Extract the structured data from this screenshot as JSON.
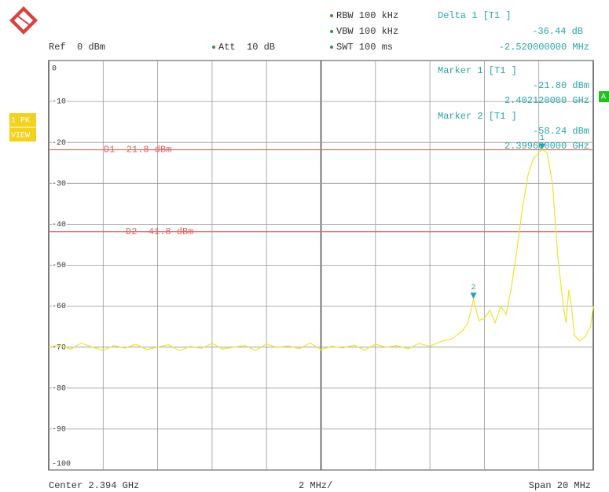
{
  "chart_data": {
    "type": "line",
    "ref_level": "Ref  0 dBm",
    "attenuation": "Att  10 dB",
    "settings": [
      "RBW 100 kHz",
      "VBW 100 kHz",
      "SWT 100 ms"
    ],
    "delta_readout": {
      "title": "Delta 1 [T1 ]",
      "level": "-36.44 dB",
      "frequency": "-2.520000000 MHz"
    },
    "marker_readouts": [
      {
        "title": "Marker 1 [T1 ]",
        "level": "-21.80 dBm",
        "frequency": "2.402120000 GHz"
      },
      {
        "title": "Marker 2 [T1 ]",
        "level": "-58.24 dBm",
        "frequency": "2.399600000 GHz"
      }
    ],
    "trace_labels": [
      "1 PK",
      "VIEW"
    ],
    "status": "A",
    "center_label": "Center 2.394 GHz",
    "division_label": "2 MHz/",
    "span_label": "Span 20 MHz",
    "xlim": [
      2.384,
      2.404
    ],
    "xticks": [
      {
        "value": 2.386,
        "label": null
      },
      {
        "value": 2.388,
        "label": null
      },
      {
        "value": 2.39,
        "label": null
      },
      {
        "value": 2.392,
        "label": null
      },
      {
        "value": 2.394,
        "label": null
      },
      {
        "value": 2.396,
        "label": null
      },
      {
        "value": 2.398,
        "label": null
      },
      {
        "value": 2.4,
        "label": null
      },
      {
        "value": 2.402,
        "label": null
      }
    ],
    "ylim": [
      -100,
      0
    ],
    "yticks": [
      0,
      -10,
      -20,
      -30,
      -40,
      -50,
      -60,
      -70,
      -80,
      -90,
      -100
    ],
    "grid": true,
    "display_lines": [
      {
        "label": "D1 -21.8 dBm",
        "value": -21.8,
        "color": "#e06464"
      },
      {
        "label": "D2 -41.8 dBm",
        "value": -41.8,
        "color": "#e06464"
      }
    ],
    "markers": [
      {
        "label": "1",
        "x": 2.40212,
        "y": -21.8
      },
      {
        "label": "2",
        "x": 2.3996,
        "y": -58.24
      }
    ],
    "marker_color": "#2aa5a5",
    "x": [
      2.384,
      2.3844,
      2.3848,
      2.3852,
      2.3856,
      2.386,
      2.3864,
      2.3868,
      2.3872,
      2.3876,
      2.388,
      2.3884,
      2.3888,
      2.3892,
      2.3896,
      2.39,
      2.3904,
      2.3908,
      2.3912,
      2.3916,
      2.392,
      2.3924,
      2.3928,
      2.3932,
      2.3936,
      2.394,
      2.3944,
      2.3948,
      2.3952,
      2.3956,
      2.396,
      2.3964,
      2.3968,
      2.3972,
      2.3976,
      2.398,
      2.3984,
      2.3988,
      2.399,
      2.3992,
      2.3994,
      2.3996,
      2.3998,
      2.4,
      2.4002,
      2.4004,
      2.4006,
      2.4008,
      2.401,
      2.4012,
      2.4014,
      2.4016,
      2.4018,
      2.402,
      2.40212,
      2.4023,
      2.4025,
      2.4027,
      2.4029,
      2.403,
      2.4031,
      2.4032,
      2.4033,
      2.4035,
      2.4037,
      2.4039,
      2.404
    ],
    "series": [
      {
        "name": "1 PK",
        "color": "#f2e230",
        "values": [
          -70,
          -69.5,
          -70.5,
          -69,
          -70,
          -70.8,
          -69.6,
          -70.2,
          -69.3,
          -70.6,
          -70,
          -69.4,
          -70.9,
          -69.8,
          -70.3,
          -69.1,
          -70.5,
          -70,
          -69.6,
          -70.8,
          -69.2,
          -70.1,
          -69.7,
          -70.4,
          -69,
          -70.6,
          -69.8,
          -70.2,
          -69.5,
          -70.7,
          -69.3,
          -70,
          -69.6,
          -70.4,
          -69.1,
          -69.8,
          -68.6,
          -68,
          -67,
          -66,
          -64,
          -58.24,
          -63.5,
          -63,
          -61,
          -64,
          -60,
          -62,
          -55,
          -46,
          -36,
          -28,
          -24,
          -22.5,
          -21.8,
          -22.5,
          -30,
          -48,
          -60,
          -64,
          -56,
          -60,
          -67,
          -68.5,
          -67.5,
          -65,
          -60
        ]
      }
    ]
  }
}
